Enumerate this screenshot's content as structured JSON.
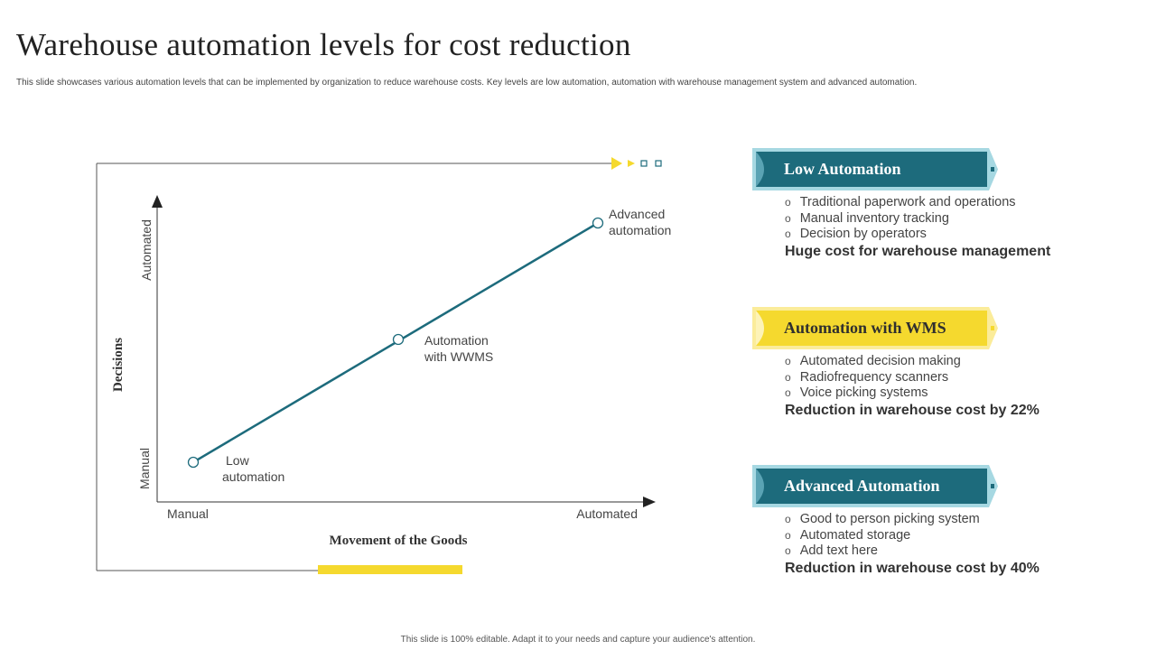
{
  "header": {
    "title": "Warehouse automation levels for cost reduction",
    "subtitle": "This slide showcases various automation levels that can be implemented  by organization to reduce warehouse costs. Key levels are low automation, automation  with warehouse management system and advanced automation."
  },
  "diagram": {
    "y_axis_title": "Decisions",
    "y_tick_low": "Manual",
    "y_tick_high": "Automated",
    "x_axis_title": "Movement of the Goods",
    "x_tick_low": "Manual",
    "x_tick_high": "Automated",
    "points": [
      {
        "label_line1": "Low",
        "label_line2": "automation"
      },
      {
        "label_line1": "Automation",
        "label_line2": "with WWMS"
      },
      {
        "label_line1": "Advanced",
        "label_line2": "automation"
      }
    ],
    "colors": {
      "line": "#1d6b7c",
      "accent": "#f5d92e"
    }
  },
  "levels": [
    {
      "title": "Low Automation",
      "style": "teal",
      "bullets": [
        "Traditional paperwork and operations",
        "Manual inventory tracking",
        "Decision by operators"
      ],
      "summary": "Huge cost for warehouse management"
    },
    {
      "title": "Automation with WMS",
      "style": "yellow",
      "bullets": [
        "Automated decision making",
        "Radiofrequency scanners",
        "Voice picking systems"
      ],
      "summary": "Reduction in warehouse cost by 22%"
    },
    {
      "title": "Advanced Automation",
      "style": "teal",
      "bullets": [
        "Good to person picking system",
        "Automated storage",
        "Add text here"
      ],
      "summary": "Reduction in warehouse cost by 40%"
    }
  ],
  "footer": "This slide is 100% editable. Adapt it to your needs and capture your audience's attention."
}
